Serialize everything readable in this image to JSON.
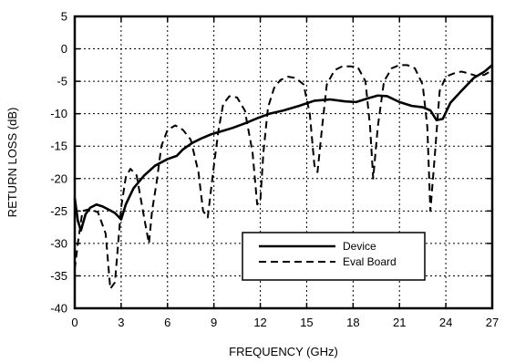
{
  "chart_data": {
    "type": "line",
    "title": "",
    "xlabel": "FREQUENCY (GHz)",
    "ylabel": "RETURN LOSS (dB)",
    "xlim": [
      0,
      27
    ],
    "ylim": [
      -40,
      5
    ],
    "xticks": [
      0,
      3,
      6,
      9,
      12,
      15,
      18,
      21,
      24,
      27
    ],
    "yticks": [
      5,
      0,
      -5,
      -10,
      -15,
      -20,
      -25,
      -30,
      -35,
      -40
    ],
    "grid": true,
    "legend_position": "lower-right",
    "series": [
      {
        "name": "Device",
        "style": "solid",
        "color": "#000000",
        "x": [
          0.0,
          0.2,
          0.4,
          0.7,
          1.0,
          1.4,
          1.8,
          2.2,
          2.6,
          3.0,
          3.3,
          3.8,
          4.5,
          5.2,
          6.0,
          6.6,
          7.0,
          7.6,
          8.2,
          8.8,
          9.5,
          10.2,
          11.0,
          11.8,
          12.6,
          13.5,
          14.5,
          15.5,
          16.5,
          17.5,
          18.2,
          19.0,
          19.6,
          20.2,
          21.0,
          21.8,
          22.5,
          23.0,
          23.4,
          23.8,
          24.3,
          25.0,
          25.8,
          26.5,
          27.0
        ],
        "y": [
          -23.0,
          -26.5,
          -28.0,
          -25.5,
          -24.5,
          -24.0,
          -24.3,
          -24.8,
          -25.3,
          -26.3,
          -24.0,
          -21.5,
          -19.5,
          -18.0,
          -17.0,
          -16.5,
          -15.5,
          -14.5,
          -13.8,
          -13.2,
          -12.7,
          -12.2,
          -11.5,
          -10.7,
          -10.0,
          -9.5,
          -8.8,
          -8.0,
          -7.8,
          -8.1,
          -8.2,
          -7.6,
          -7.2,
          -7.3,
          -8.2,
          -8.8,
          -9.0,
          -9.5,
          -11.0,
          -10.8,
          -8.3,
          -6.5,
          -4.5,
          -3.5,
          -2.5
        ]
      },
      {
        "name": "Eval Board",
        "style": "dashed",
        "color": "#000000",
        "x": [
          0.0,
          0.2,
          0.5,
          1.0,
          1.5,
          2.0,
          2.3,
          2.6,
          3.0,
          3.3,
          3.6,
          4.0,
          4.3,
          4.6,
          4.8,
          5.0,
          5.3,
          5.6,
          6.0,
          6.5,
          7.0,
          7.5,
          8.0,
          8.3,
          8.6,
          9.0,
          9.3,
          9.6,
          10.0,
          10.5,
          11.0,
          11.5,
          11.8,
          12.0,
          12.2,
          12.5,
          12.9,
          13.3,
          13.8,
          14.3,
          14.8,
          15.2,
          15.5,
          15.7,
          16.0,
          16.3,
          16.8,
          17.3,
          17.8,
          18.3,
          18.8,
          19.1,
          19.3,
          19.6,
          20.0,
          20.5,
          21.0,
          21.5,
          22.0,
          22.5,
          22.8,
          23.0,
          23.3,
          23.6,
          24.0,
          24.5,
          25.0,
          25.5,
          26.0,
          26.5,
          27.0
        ],
        "y": [
          -34.0,
          -30.0,
          -25.0,
          -24.7,
          -25.2,
          -28.5,
          -37.0,
          -36.0,
          -24.5,
          -19.8,
          -18.5,
          -19.5,
          -23.5,
          -27.5,
          -30.0,
          -25.0,
          -20.5,
          -15.0,
          -12.5,
          -11.8,
          -12.5,
          -14.0,
          -19.0,
          -25.0,
          -26.0,
          -18.0,
          -12.5,
          -8.5,
          -7.3,
          -7.5,
          -9.5,
          -16.0,
          -24.0,
          -23.5,
          -16.0,
          -9.0,
          -6.0,
          -4.8,
          -4.3,
          -4.5,
          -5.5,
          -10.0,
          -18.0,
          -19.0,
          -12.0,
          -5.5,
          -3.3,
          -2.7,
          -2.7,
          -2.8,
          -5.0,
          -12.0,
          -20.0,
          -12.0,
          -5.0,
          -3.0,
          -2.5,
          -2.5,
          -3.0,
          -5.5,
          -12.0,
          -25.0,
          -16.0,
          -6.5,
          -4.3,
          -3.8,
          -3.5,
          -3.8,
          -4.2,
          -4.0,
          -3.3
        ]
      }
    ]
  }
}
